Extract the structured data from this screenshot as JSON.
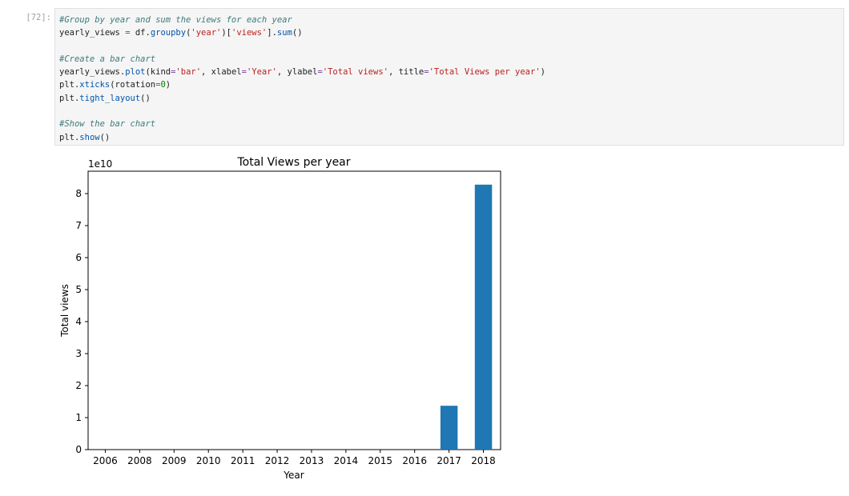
{
  "cell": {
    "prompt": "[72]:",
    "code_lines": [
      [
        {
          "t": "#Group by year and sum the views for each year",
          "c": "cm"
        }
      ],
      [
        {
          "t": "yearly_views ",
          "c": ""
        },
        {
          "t": "=",
          "c": "op"
        },
        {
          "t": " df.",
          "c": ""
        },
        {
          "t": "groupby",
          "c": "fn"
        },
        {
          "t": "(",
          "c": ""
        },
        {
          "t": "'year'",
          "c": "str"
        },
        {
          "t": ")[",
          "c": ""
        },
        {
          "t": "'views'",
          "c": "str"
        },
        {
          "t": "].",
          "c": ""
        },
        {
          "t": "sum",
          "c": "fn"
        },
        {
          "t": "()",
          "c": ""
        }
      ],
      [],
      [
        {
          "t": "#Create a bar chart",
          "c": "cm"
        }
      ],
      [
        {
          "t": "yearly_views.",
          "c": ""
        },
        {
          "t": "plot",
          "c": "fn"
        },
        {
          "t": "(kind",
          "c": ""
        },
        {
          "t": "=",
          "c": "op"
        },
        {
          "t": "'bar'",
          "c": "str"
        },
        {
          "t": ", xlabel",
          "c": ""
        },
        {
          "t": "=",
          "c": "op"
        },
        {
          "t": "'Year'",
          "c": "str"
        },
        {
          "t": ", ylabel",
          "c": ""
        },
        {
          "t": "=",
          "c": "op"
        },
        {
          "t": "'Total views'",
          "c": "str"
        },
        {
          "t": ", title",
          "c": ""
        },
        {
          "t": "=",
          "c": "op"
        },
        {
          "t": "'Total Views per year'",
          "c": "str"
        },
        {
          "t": ")",
          "c": ""
        }
      ],
      [
        {
          "t": "plt.",
          "c": ""
        },
        {
          "t": "xticks",
          "c": "fn"
        },
        {
          "t": "(rotation",
          "c": ""
        },
        {
          "t": "=",
          "c": "op"
        },
        {
          "t": "0",
          "c": "num"
        },
        {
          "t": ")",
          "c": ""
        }
      ],
      [
        {
          "t": "plt.",
          "c": ""
        },
        {
          "t": "tight_layout",
          "c": "fn"
        },
        {
          "t": "()",
          "c": ""
        }
      ],
      [],
      [
        {
          "t": "#Show the bar chart",
          "c": "cm"
        }
      ],
      [
        {
          "t": "plt.",
          "c": ""
        },
        {
          "t": "show",
          "c": "fn"
        },
        {
          "t": "()",
          "c": ""
        }
      ]
    ]
  },
  "chart_data": {
    "type": "bar",
    "title": "Total Views per year",
    "xlabel": "Year",
    "ylabel": "Total views",
    "offset_label": "1e10",
    "categories": [
      "2006",
      "2008",
      "2009",
      "2010",
      "2011",
      "2012",
      "2013",
      "2014",
      "2015",
      "2016",
      "2017",
      "2018"
    ],
    "values": [
      0,
      0,
      0,
      0,
      0,
      0,
      0,
      0,
      0,
      0,
      1.37,
      8.28
    ],
    "value_scale": "1e10",
    "ylim": [
      0,
      8.7
    ],
    "yticks": [
      0,
      1,
      2,
      3,
      4,
      5,
      6,
      7,
      8
    ],
    "bar_color": "#1f77b4",
    "grid": false,
    "legend": false
  }
}
